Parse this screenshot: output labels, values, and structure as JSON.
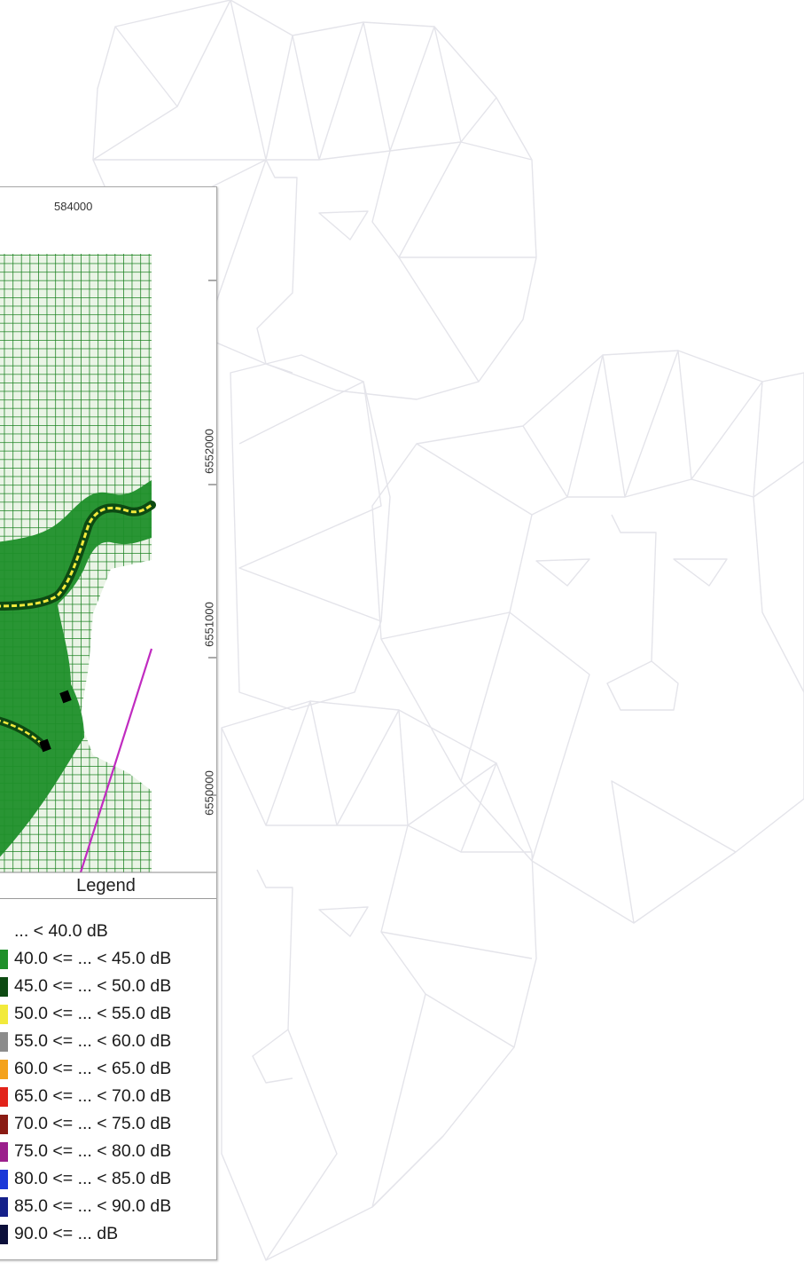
{
  "map": {
    "x_tick_label": "584000",
    "y_tick_labels": [
      "6552000",
      "6551000",
      "6550000"
    ]
  },
  "legend": {
    "title": "Legend",
    "items": [
      {
        "label": "... < 40.0 dB",
        "color": "#ffffff"
      },
      {
        "label": "40.0 <= ... < 45.0 dB",
        "color": "#1f8f2a"
      },
      {
        "label": "45.0 <= ... < 50.0 dB",
        "color": "#0d4a12"
      },
      {
        "label": "50.0 <= ... < 55.0 dB",
        "color": "#f2ea3b"
      },
      {
        "label": "55.0 <= ... < 60.0 dB",
        "color": "#8c8c8c"
      },
      {
        "label": "60.0 <= ... < 65.0 dB",
        "color": "#f4a21c"
      },
      {
        "label": "65.0 <= ... < 70.0 dB",
        "color": "#e2231a"
      },
      {
        "label": "70.0 <= ... < 75.0 dB",
        "color": "#8a1b14"
      },
      {
        "label": "75.0 <= ... < 80.0 dB",
        "color": "#9b1f8c"
      },
      {
        "label": "80.0 <= ... < 85.0 dB",
        "color": "#1b38d8"
      },
      {
        "label": "85.0 <= ... < 90.0 dB",
        "color": "#14208a"
      },
      {
        "label": "90.0 <= ...   dB",
        "color": "#0b0f3a"
      }
    ]
  }
}
